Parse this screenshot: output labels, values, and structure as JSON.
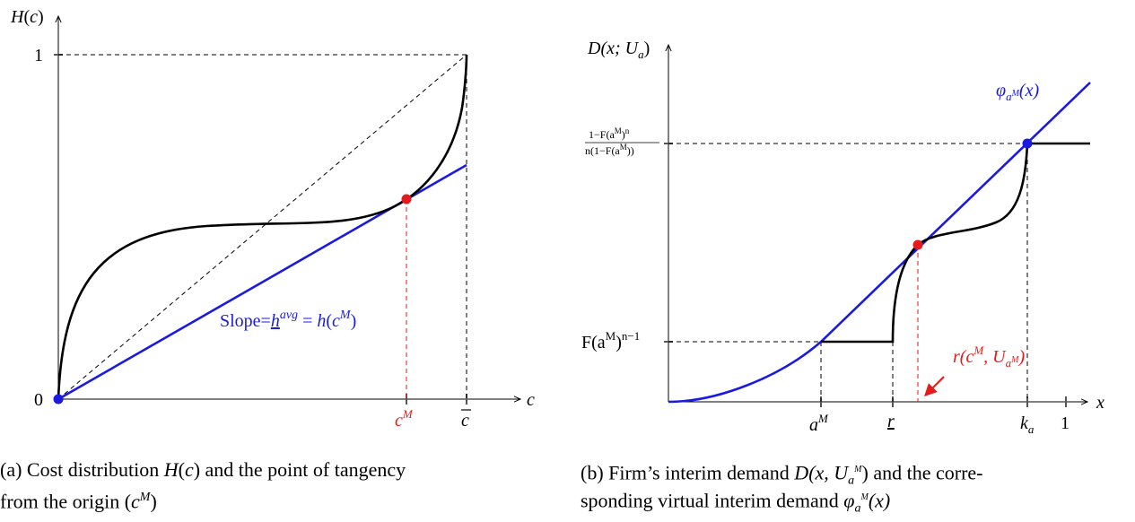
{
  "panel_a": {
    "ylabel_base": "H",
    "ylabel_paren_open": "(",
    "ylabel_var": "c",
    "ylabel_paren_close": ")",
    "xlabel": "c",
    "ytick_one": "1",
    "ytick_zero": "0",
    "xtick_cm_base": "c",
    "xtick_cm_sup": "M",
    "xtick_cbar": "c",
    "slope_prefix": "Slope=",
    "slope_h": "h",
    "slope_sup": "avg",
    "slope_mid": " = ",
    "slope_h2": "h",
    "slope_paren": "(",
    "slope_c": "c",
    "slope_sup2": "M",
    "slope_close": ")",
    "colors": {
      "curve": "#000000",
      "line": "#1a1ae0",
      "tangent_point": "#e51a1a",
      "guide": "#e51a1a"
    }
  },
  "panel_b": {
    "ylabel": "D(x; U",
    "ylabel_sub": "a",
    "ylabel_close": ")",
    "xlabel": "x",
    "phi_label": "φ",
    "phi_sub": "a",
    "phi_subsup": "M",
    "phi_arg": "(x)",
    "ytick_top_num": "1−F(a",
    "ytick_top_num_sup": "M",
    "ytick_top_num_end": ")",
    "ytick_top_num_pow": "n",
    "ytick_top_den": "n(1−F(a",
    "ytick_top_den_sup": "M",
    "ytick_top_den_end": "))",
    "ytick_low_base": "F(a",
    "ytick_low_sup": "M",
    "ytick_low_close": ")",
    "ytick_low_pow": "n−1",
    "xtick_aM_base": "a",
    "xtick_aM_sup": "M",
    "xtick_r": "r",
    "xtick_ka_base": "k",
    "xtick_ka_sub": "a",
    "xtick_one": "1",
    "r_label_prefix": "r(c",
    "r_label_sup": "M",
    "r_label_mid": ", U",
    "r_label_sub": "a",
    "r_label_subsup": "M",
    "r_label_close": ")",
    "colors": {
      "curve": "#000000",
      "line": "#1a1ae0",
      "point_red": "#e51a1a",
      "point_blue": "#1a1ae0"
    }
  },
  "captions": {
    "a_line1_prefix": "(a) Cost distribution ",
    "a_line1_H": "H",
    "a_line1_c": "c",
    "a_line1_suffix": " and the point of tangency",
    "a_line2_prefix": "from the origin (",
    "a_line2_c": "c",
    "a_line2_sup": "M",
    "a_line2_suffix": ")",
    "b_line1_prefix": "(b) Firm’s interim demand ",
    "b_line1_D": "D",
    "b_line1_args": "(x, U",
    "b_line1_sub": "a",
    "b_line1_subsup": "M",
    "b_line1_suffix": ") and the corre-",
    "b_line2_prefix": "sponding virtual interim demand ",
    "b_line2_phi": "φ",
    "b_line2_sub": "a",
    "b_line2_subsup": "M",
    "b_line2_suffix": "(x)"
  }
}
